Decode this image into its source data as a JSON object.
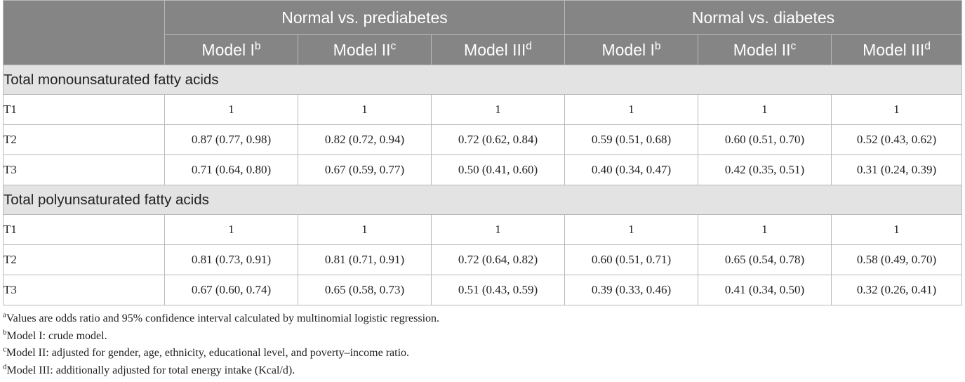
{
  "header": {
    "groups": [
      "Normal vs. prediabetes",
      "Normal vs. diabetes"
    ],
    "models": [
      {
        "label": "Model I",
        "sup": "b"
      },
      {
        "label": "Model II",
        "sup": "c"
      },
      {
        "label": "Model III",
        "sup": "d"
      },
      {
        "label": "Model I",
        "sup": "b"
      },
      {
        "label": "Model II",
        "sup": "c"
      },
      {
        "label": "Model III",
        "sup": "d"
      }
    ]
  },
  "sections": [
    {
      "title": "Total monounsaturated fatty acids",
      "rows": [
        {
          "label": "T1",
          "values": [
            "1",
            "1",
            "1",
            "1",
            "1",
            "1"
          ]
        },
        {
          "label": "T2",
          "values": [
            "0.87 (0.77, 0.98)",
            "0.82 (0.72, 0.94)",
            "0.72 (0.62, 0.84)",
            "0.59 (0.51, 0.68)",
            "0.60 (0.51, 0.70)",
            "0.52 (0.43, 0.62)"
          ]
        },
        {
          "label": "T3",
          "values": [
            "0.71 (0.64, 0.80)",
            "0.67 (0.59, 0.77)",
            "0.50 (0.41, 0.60)",
            "0.40 (0.34, 0.47)",
            "0.42 (0.35, 0.51)",
            "0.31 (0.24, 0.39)"
          ]
        }
      ]
    },
    {
      "title": "Total polyunsaturated fatty acids",
      "rows": [
        {
          "label": "T1",
          "values": [
            "1",
            "1",
            "1",
            "1",
            "1",
            "1"
          ]
        },
        {
          "label": "T2",
          "values": [
            "0.81 (0.73, 0.91)",
            "0.81 (0.71, 0.91)",
            "0.72 (0.64, 0.82)",
            "0.60 (0.51, 0.71)",
            "0.65 (0.54, 0.78)",
            "0.58 (0.49, 0.70)"
          ]
        },
        {
          "label": "T3",
          "values": [
            "0.67 (0.60, 0.74)",
            "0.65 (0.58, 0.73)",
            "0.51 (0.43, 0.59)",
            "0.39 (0.33, 0.46)",
            "0.41 (0.34, 0.50)",
            "0.32 (0.26, 0.41)"
          ]
        }
      ]
    }
  ],
  "footnotes": [
    {
      "mark": "a",
      "text": "Values are odds ratio and 95% confidence interval calculated by multinomial logistic regression."
    },
    {
      "mark": "b",
      "text": "Model I: crude model."
    },
    {
      "mark": "c",
      "text": "Model II: adjusted for gender, age, ethnicity, educational level, and poverty–income ratio."
    },
    {
      "mark": "d",
      "text": "Model III: additionally adjusted for total energy intake (Kcal/d)."
    }
  ],
  "colors": {
    "header_bg": "#858585",
    "section_bg": "#e3e3e3",
    "border": "#b9b9b9"
  }
}
